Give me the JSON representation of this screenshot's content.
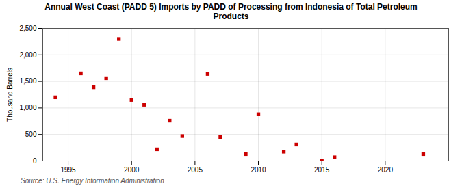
{
  "chart_data": {
    "type": "scatter",
    "title": "Annual West Coast (PADD 5) Imports by PADD of Processing from Indonesia of Total Petroleum\nProducts",
    "ylabel": "Thousand Barrels",
    "source": "Source: U.S. Energy Information Administration",
    "x": [
      1994,
      1996,
      1997,
      1998,
      1999,
      2000,
      2001,
      2002,
      2003,
      2004,
      2006,
      2007,
      2009,
      2010,
      2012,
      2013,
      2015,
      2016,
      2023
    ],
    "values": [
      1200,
      1650,
      1390,
      1560,
      2300,
      1150,
      1060,
      220,
      760,
      470,
      1640,
      450,
      130,
      880,
      175,
      310,
      5,
      70,
      130
    ],
    "color": "#cc0000",
    "marker": "square",
    "xlim": [
      1993,
      2025
    ],
    "ylim": [
      0,
      2500
    ],
    "xticks": [
      1995,
      2000,
      2005,
      2010,
      2015,
      2020
    ],
    "yticks": [
      0,
      500,
      {
        "value": 1000,
        "label": "1,000"
      },
      {
        "value": 1500,
        "label": "1,500"
      },
      {
        "value": 2000,
        "label": "2,000"
      },
      {
        "value": 2500,
        "label": "2,500"
      }
    ],
    "grid": true
  }
}
